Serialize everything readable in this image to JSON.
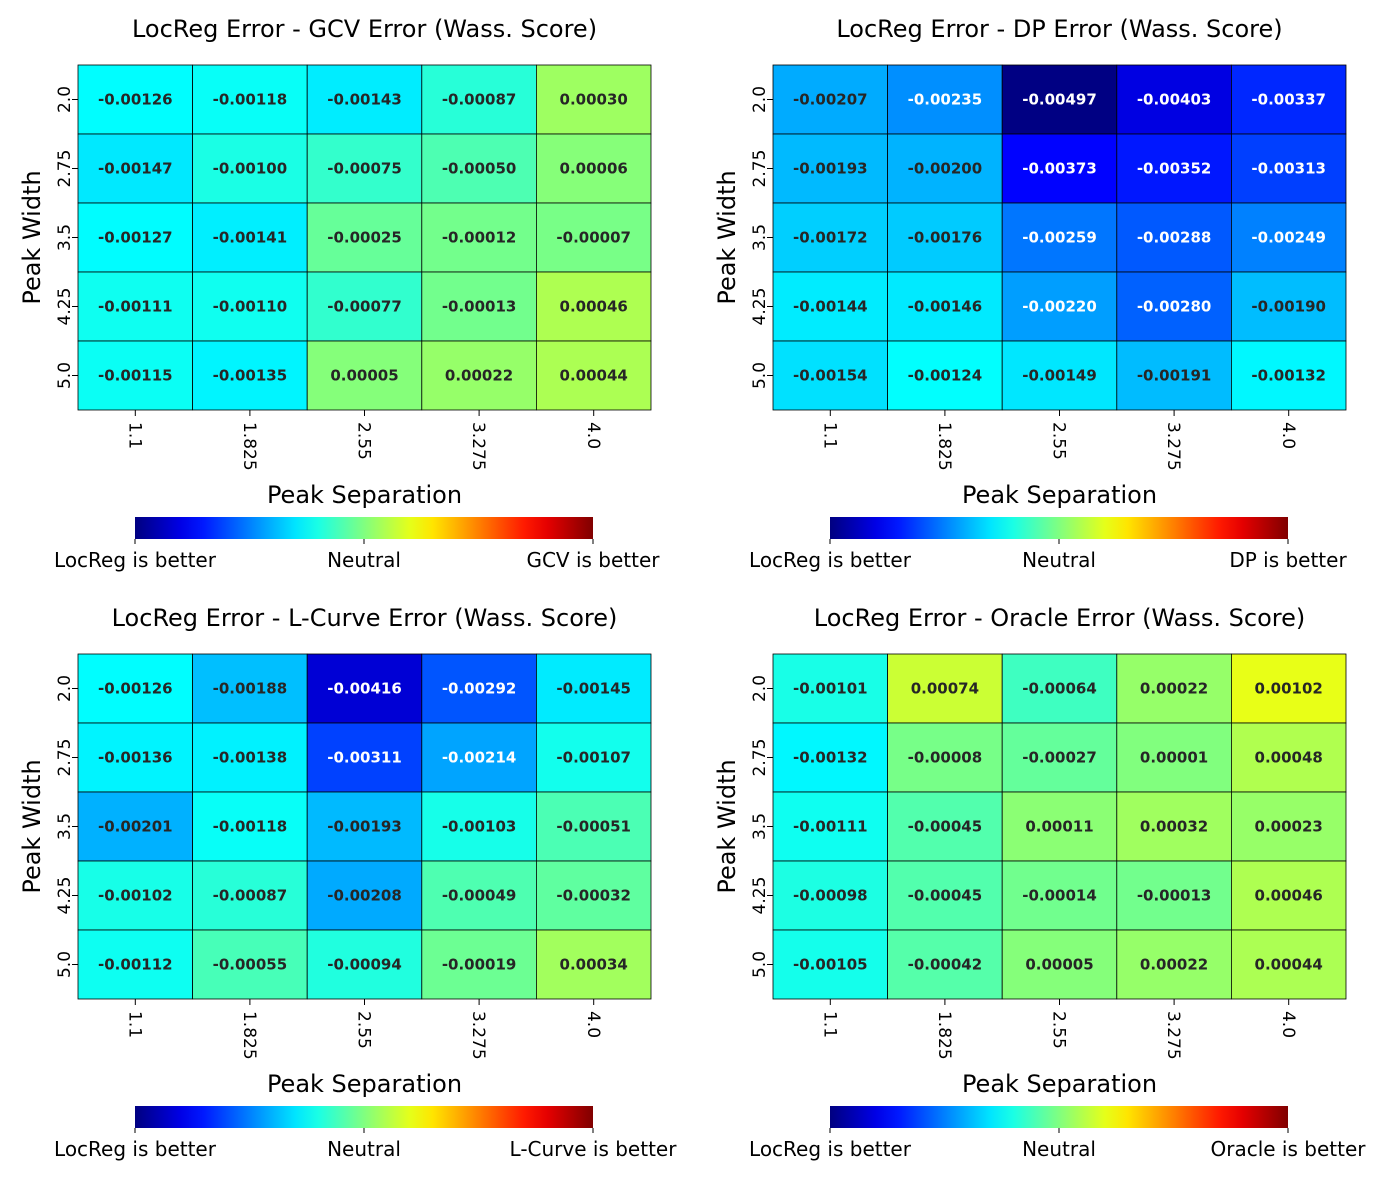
{
  "chart_data": [
    {
      "type": "heatmap",
      "title": "LocReg Error - GCV Error (Wass. Score)",
      "xlabel": "Peak Separation",
      "ylabel": "Peak Width",
      "x": [
        "1.1",
        "1.825",
        "2.55",
        "3.275",
        "4.0"
      ],
      "y": [
        "2.0",
        "2.75",
        "3.5",
        "4.25",
        "5.0"
      ],
      "values": [
        [
          -0.00126,
          -0.00118,
          -0.00143,
          -0.00087,
          0.0003
        ],
        [
          -0.00147,
          -0.001,
          -0.00075,
          -0.0005,
          6e-05
        ],
        [
          -0.00127,
          -0.00141,
          -0.00025,
          -0.00012,
          -7e-05
        ],
        [
          -0.00111,
          -0.0011,
          -0.00077,
          -0.00013,
          0.00046
        ],
        [
          -0.00115,
          -0.00135,
          5e-05,
          0.00022,
          0.00044
        ]
      ],
      "cell_labels": [
        [
          "-0.00126",
          "-0.00118",
          "-0.00143",
          "-0.00087",
          "0.00030"
        ],
        [
          "-0.00147",
          "-0.00100",
          "-0.00075",
          "-0.00050",
          "0.00006"
        ],
        [
          "-0.00127",
          "-0.00141",
          "-0.00025",
          "-0.00012",
          "-0.00007"
        ],
        [
          "-0.00111",
          "-0.00110",
          "-0.00077",
          "-0.00013",
          "0.00046"
        ],
        [
          "-0.00115",
          "-0.00135",
          "0.00005",
          "0.00022",
          "0.00044"
        ]
      ],
      "color_range": [
        -0.005,
        0.005
      ],
      "colormap": "jet",
      "colorbar_labels": [
        "LocReg is better",
        "Neutral",
        "GCV is better"
      ]
    },
    {
      "type": "heatmap",
      "title": "LocReg Error - DP Error (Wass. Score)",
      "xlabel": "Peak Separation",
      "ylabel": "Peak Width",
      "x": [
        "1.1",
        "1.825",
        "2.55",
        "3.275",
        "4.0"
      ],
      "y": [
        "2.0",
        "2.75",
        "3.5",
        "4.25",
        "5.0"
      ],
      "values": [
        [
          -0.00207,
          -0.00235,
          -0.00497,
          -0.00403,
          -0.00337
        ],
        [
          -0.00193,
          -0.002,
          -0.00373,
          -0.00352,
          -0.00313
        ],
        [
          -0.00172,
          -0.00176,
          -0.00259,
          -0.00288,
          -0.00249
        ],
        [
          -0.00144,
          -0.00146,
          -0.0022,
          -0.0028,
          -0.0019
        ],
        [
          -0.00154,
          -0.00124,
          -0.00149,
          -0.00191,
          -0.00132
        ]
      ],
      "cell_labels": [
        [
          "-0.00207",
          "-0.00235",
          "-0.00497",
          "-0.00403",
          "-0.00337"
        ],
        [
          "-0.00193",
          "-0.00200",
          "-0.00373",
          "-0.00352",
          "-0.00313"
        ],
        [
          "-0.00172",
          "-0.00176",
          "-0.00259",
          "-0.00288",
          "-0.00249"
        ],
        [
          "-0.00144",
          "-0.00146",
          "-0.00220",
          "-0.00280",
          "-0.00190"
        ],
        [
          "-0.00154",
          "-0.00124",
          "-0.00149",
          "-0.00191",
          "-0.00132"
        ]
      ],
      "color_range": [
        -0.005,
        0.005
      ],
      "colormap": "jet",
      "colorbar_labels": [
        "LocReg is better",
        "Neutral",
        "DP is better"
      ]
    },
    {
      "type": "heatmap",
      "title": "LocReg Error - L-Curve Error (Wass. Score)",
      "xlabel": "Peak Separation",
      "ylabel": "Peak Width",
      "x": [
        "1.1",
        "1.825",
        "2.55",
        "3.275",
        "4.0"
      ],
      "y": [
        "2.0",
        "2.75",
        "3.5",
        "4.25",
        "5.0"
      ],
      "values": [
        [
          -0.00126,
          -0.00188,
          -0.00416,
          -0.00292,
          -0.00145
        ],
        [
          -0.00136,
          -0.00138,
          -0.00311,
          -0.00214,
          -0.00107
        ],
        [
          -0.00201,
          -0.00118,
          -0.00193,
          -0.00103,
          -0.00051
        ],
        [
          -0.00102,
          -0.00087,
          -0.00208,
          -0.00049,
          -0.00032
        ],
        [
          -0.00112,
          -0.00055,
          -0.00094,
          -0.00019,
          0.00034
        ]
      ],
      "cell_labels": [
        [
          "-0.00126",
          "-0.00188",
          "-0.00416",
          "-0.00292",
          "-0.00145"
        ],
        [
          "-0.00136",
          "-0.00138",
          "-0.00311",
          "-0.00214",
          "-0.00107"
        ],
        [
          "-0.00201",
          "-0.00118",
          "-0.00193",
          "-0.00103",
          "-0.00051"
        ],
        [
          "-0.00102",
          "-0.00087",
          "-0.00208",
          "-0.00049",
          "-0.00032"
        ],
        [
          "-0.00112",
          "-0.00055",
          "-0.00094",
          "-0.00019",
          "0.00034"
        ]
      ],
      "color_range": [
        -0.005,
        0.005
      ],
      "colormap": "jet",
      "colorbar_labels": [
        "LocReg is better",
        "Neutral",
        "L-Curve is better"
      ]
    },
    {
      "type": "heatmap",
      "title": "LocReg Error - Oracle Error (Wass. Score)",
      "xlabel": "Peak Separation",
      "ylabel": "Peak Width",
      "x": [
        "1.1",
        "1.825",
        "2.55",
        "3.275",
        "4.0"
      ],
      "y": [
        "2.0",
        "2.75",
        "3.5",
        "4.25",
        "5.0"
      ],
      "values": [
        [
          -0.00101,
          0.00074,
          -0.00064,
          0.00022,
          0.00102
        ],
        [
          -0.00132,
          -8e-05,
          -0.00027,
          1e-05,
          0.00048
        ],
        [
          -0.00111,
          -0.00045,
          0.00011,
          0.00032,
          0.00023
        ],
        [
          -0.00098,
          -0.00045,
          -0.00014,
          -0.00013,
          0.00046
        ],
        [
          -0.00105,
          -0.00042,
          5e-05,
          0.00022,
          0.00044
        ]
      ],
      "cell_labels": [
        [
          "-0.00101",
          "0.00074",
          "-0.00064",
          "0.00022",
          "0.00102"
        ],
        [
          "-0.00132",
          "-0.00008",
          "-0.00027",
          "0.00001",
          "0.00048"
        ],
        [
          "-0.00111",
          "-0.00045",
          "0.00011",
          "0.00032",
          "0.00023"
        ],
        [
          "-0.00098",
          "-0.00045",
          "-0.00014",
          "-0.00013",
          "0.00046"
        ],
        [
          "-0.00105",
          "-0.00042",
          "0.00005",
          "0.00022",
          "0.00044"
        ]
      ],
      "color_range": [
        -0.005,
        0.005
      ],
      "colormap": "jet",
      "colorbar_labels": [
        "LocReg is better",
        "Neutral",
        "Oracle is better"
      ]
    }
  ]
}
